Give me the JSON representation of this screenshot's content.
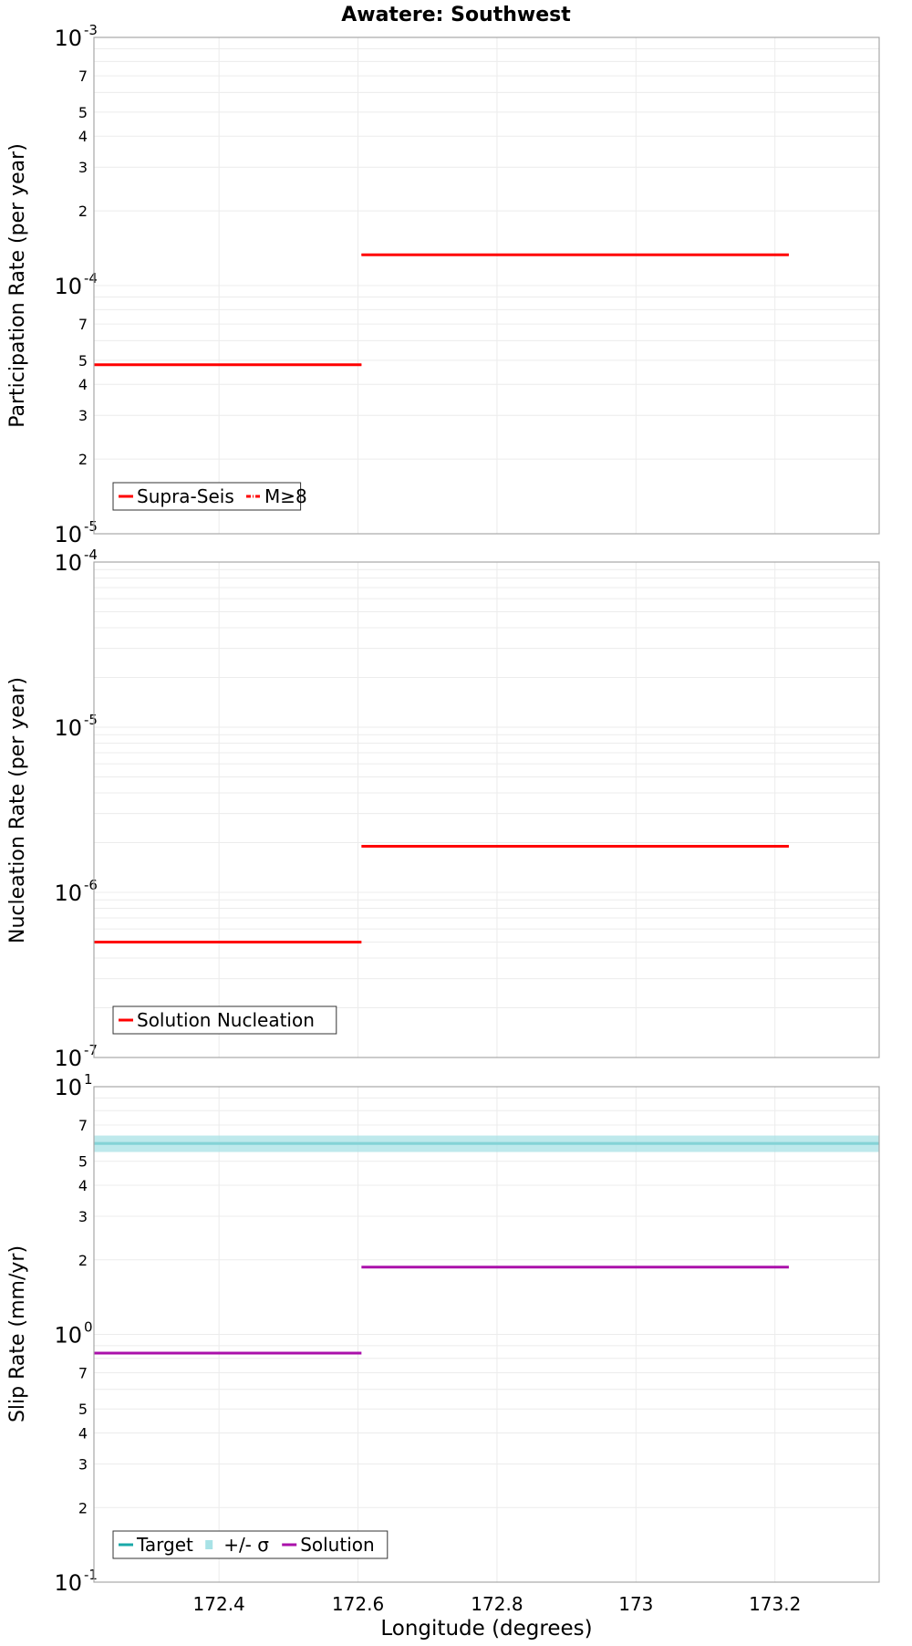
{
  "chart_data": [
    {
      "id": "participation",
      "type": "line",
      "title": "Awatere: Southwest",
      "xlabel": "",
      "ylabel": "Participation Rate (per year)",
      "xlim": [
        172.22,
        173.35
      ],
      "xticks": [
        "172.4",
        "172.6",
        "172.8",
        "173",
        "173.2"
      ],
      "xtick_values": [
        172.4,
        172.6,
        172.8,
        173.0,
        173.2
      ],
      "yscale": "log",
      "ylim": [
        1e-05,
        0.001
      ],
      "ydecades": [
        {
          "base": "10",
          "exp": "-5",
          "value": 1e-05
        },
        {
          "base": "10",
          "exp": "-4",
          "value": 0.0001
        },
        {
          "base": "10",
          "exp": "-3",
          "value": 0.001
        }
      ],
      "yminor_labels": [
        "2",
        "3",
        "4",
        "5",
        "7"
      ],
      "series": [
        {
          "name": "Supra-Seis",
          "style": "solid",
          "color": "#ff0000",
          "segments": [
            {
              "x": [
                172.22,
                172.605
              ],
              "y": 4.8e-05
            },
            {
              "x": [
                172.605,
                173.22
              ],
              "y": 0.000133
            }
          ]
        },
        {
          "name": "M≥8",
          "style": "dashdot",
          "color": "#ff0000",
          "segments": [
            {
              "x": [
                172.22,
                172.605
              ],
              "y": 4.8e-05
            },
            {
              "x": [
                172.605,
                173.22
              ],
              "y": 0.000133
            }
          ]
        }
      ],
      "legend": {
        "position": "bottom-left"
      }
    },
    {
      "id": "nucleation",
      "type": "line",
      "xlabel": "",
      "ylabel": "Nucleation Rate (per year)",
      "xlim": [
        172.22,
        173.35
      ],
      "xticks": [
        "172.4",
        "172.6",
        "172.8",
        "173",
        "173.2"
      ],
      "xtick_values": [
        172.4,
        172.6,
        172.8,
        173.0,
        173.2
      ],
      "yscale": "log",
      "ylim": [
        1e-07,
        0.0001
      ],
      "ydecades": [
        {
          "base": "10",
          "exp": "-7",
          "value": 1e-07
        },
        {
          "base": "10",
          "exp": "-6",
          "value": 1e-06
        },
        {
          "base": "10",
          "exp": "-5",
          "value": 1e-05
        },
        {
          "base": "10",
          "exp": "-4",
          "value": 0.0001
        }
      ],
      "yminor_labels": [],
      "series": [
        {
          "name": "Solution Nucleation",
          "style": "solid",
          "color": "#ff0000",
          "segments": [
            {
              "x": [
                172.22,
                172.605
              ],
              "y": 5e-07
            },
            {
              "x": [
                172.605,
                173.22
              ],
              "y": 1.9e-06
            }
          ]
        }
      ],
      "legend": {
        "position": "bottom-left"
      }
    },
    {
      "id": "slip",
      "type": "line",
      "xlabel": "Longitude (degrees)",
      "ylabel": "Slip Rate (mm/yr)",
      "xlim": [
        172.22,
        173.35
      ],
      "xticks": [
        "172.4",
        "172.6",
        "172.8",
        "173",
        "173.2"
      ],
      "xtick_values": [
        172.4,
        172.6,
        172.8,
        173.0,
        173.2
      ],
      "yscale": "log",
      "ylim": [
        0.1,
        10
      ],
      "ydecades": [
        {
          "base": "10",
          "exp": "-1",
          "value": 0.1
        },
        {
          "base": "10",
          "exp": "0",
          "value": 1
        },
        {
          "base": "10",
          "exp": "1",
          "value": 10
        }
      ],
      "yminor_labels": [
        "2",
        "3",
        "4",
        "5",
        "7"
      ],
      "series": [
        {
          "name": "Target",
          "style": "solid",
          "color": "#1aa8a8",
          "segments": [
            {
              "x": [
                172.22,
                173.35
              ],
              "y": 5.9
            }
          ]
        },
        {
          "name": "+/- σ",
          "style": "band",
          "color": "#a8e2e6",
          "band": {
            "x": [
              172.22,
              173.35
            ],
            "ylow": 5.45,
            "yhigh": 6.35
          }
        },
        {
          "name": "Solution",
          "style": "solid",
          "color": "#aa10aa",
          "segments": [
            {
              "x": [
                172.22,
                172.605
              ],
              "y": 0.84
            },
            {
              "x": [
                172.605,
                173.22
              ],
              "y": 1.87
            }
          ]
        }
      ],
      "legend": {
        "position": "bottom-left"
      }
    }
  ]
}
